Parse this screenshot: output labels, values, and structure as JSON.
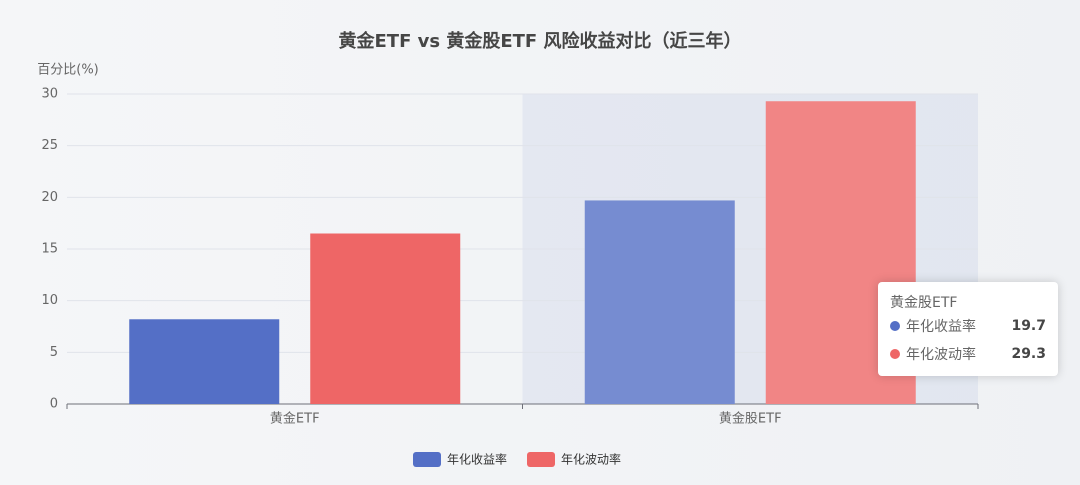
{
  "chart_data": {
    "type": "bar",
    "title": "黄金ETF vs 黄金股ETF 风险收益对比（近三年）",
    "y_label": "百分比(%)",
    "categories": [
      "黄金ETF",
      "黄金股ETF"
    ],
    "series": [
      {
        "name": "年化收益率",
        "color": "#546fc6",
        "values": [
          8.2,
          19.7
        ]
      },
      {
        "name": "年化波动率",
        "color": "#ee6666",
        "values": [
          16.5,
          29.3
        ]
      }
    ],
    "ylim": [
      0,
      30
    ],
    "yticks": [
      0,
      5,
      10,
      15,
      20,
      25,
      30
    ],
    "grid": true,
    "legend": "bottom"
  }
}
